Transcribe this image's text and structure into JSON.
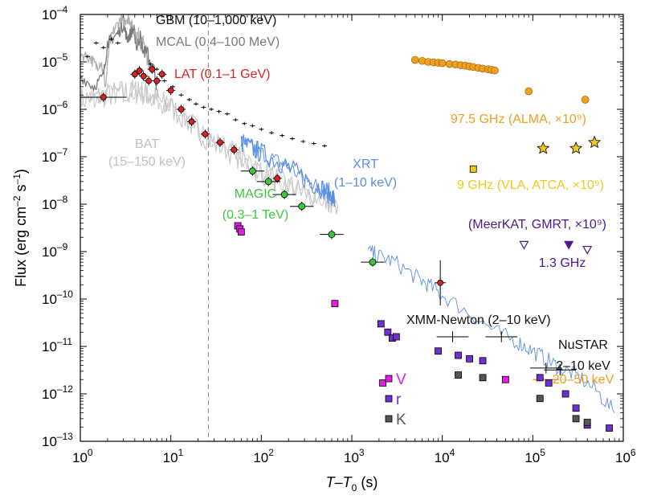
{
  "chart_data": {
    "type": "scatter",
    "xscale": "log",
    "yscale": "log",
    "xlim": [
      1,
      1000000
    ],
    "ylim": [
      1e-13,
      0.0001
    ],
    "xlabel": {
      "main": "T–T",
      "sub": "0",
      "unit": " (s)"
    },
    "ylabel": {
      "main": "Flux (erg cm",
      "sup1": "–2",
      "mid": " s",
      "sup2": "–1",
      "end": ")"
    },
    "x_ticks": [
      {
        "value": 1,
        "base": "10",
        "exp": "0"
      },
      {
        "value": 10,
        "base": "10",
        "exp": "1"
      },
      {
        "value": 100,
        "base": "10",
        "exp": "2"
      },
      {
        "value": 1000,
        "base": "10",
        "exp": "3"
      },
      {
        "value": 10000,
        "base": "10",
        "exp": "4"
      },
      {
        "value": 100000,
        "base": "10",
        "exp": "5"
      },
      {
        "value": 1000000,
        "base": "10",
        "exp": "6"
      }
    ],
    "y_ticks": [
      {
        "value": 1e-13,
        "base": "10",
        "exp": "–13"
      },
      {
        "value": 1e-12,
        "base": "10",
        "exp": "–12"
      },
      {
        "value": 1e-11,
        "base": "10",
        "exp": "–11"
      },
      {
        "value": 1e-10,
        "base": "10",
        "exp": "–10"
      },
      {
        "value": 1e-09,
        "base": "10",
        "exp": "–9"
      },
      {
        "value": 1e-08,
        "base": "10",
        "exp": "–8"
      },
      {
        "value": 1e-07,
        "base": "10",
        "exp": "–7"
      },
      {
        "value": 1e-06,
        "base": "10",
        "exp": "–6"
      },
      {
        "value": 1e-05,
        "base": "10",
        "exp": "–5"
      },
      {
        "value": 0.0001,
        "base": "10",
        "exp": "–4"
      }
    ],
    "vline_x": 26,
    "series": [
      {
        "name": "GBM",
        "label": "GBM (10–1,000 keV)",
        "kind": "curve",
        "color": "#b0b0b0",
        "x": [
          1.0,
          1.3,
          1.5,
          1.7,
          1.9,
          2.1,
          2.4,
          2.8,
          3.0,
          3.3,
          3.5,
          3.8,
          4.1,
          4.4,
          4.7,
          5.0,
          5.4,
          5.8
        ],
        "y": [
          1.5e-05,
          1.2e-05,
          8e-06,
          1e-05,
          3e-06,
          2.5e-05,
          5e-05,
          8e-05,
          7e-05,
          8.5e-05,
          8e-05,
          5e-05,
          3e-05,
          4e-05,
          2e-05,
          3e-05,
          1.3e-05,
          7e-06
        ]
      },
      {
        "name": "GBM-upper-limits",
        "kind": "marks",
        "color": "#000000",
        "x": [
          1.2,
          1.5,
          1.8,
          2.2,
          2.6,
          6.0,
          7.0,
          8.5,
          10.5,
          13,
          16,
          19,
          23,
          28,
          34,
          42,
          52,
          65,
          80,
          100,
          130,
          170,
          220,
          290,
          380,
          500
        ],
        "y": [
          1.3e-05,
          2.5e-05,
          2e-05,
          3e-05,
          2.5e-05,
          9e-06,
          7e-06,
          4e-06,
          3e-06,
          2e-06,
          1.6e-06,
          1.3e-06,
          1.1e-06,
          1e-06,
          9e-07,
          8e-07,
          6e-07,
          5e-07,
          4.5e-07,
          3.8e-07,
          3.2e-07,
          2.8e-07,
          2.4e-07,
          2.1e-07,
          1.9e-07,
          1.7e-07
        ]
      },
      {
        "name": "MCAL",
        "label": "MCAL (0.4–100 MeV)",
        "kind": "curve",
        "color": "#7a7a7a",
        "x": [
          1.0,
          1.4,
          1.8,
          2.0,
          2.2,
          2.6,
          3.0,
          3.3,
          3.6,
          3.9,
          4.2,
          4.6,
          5.0,
          5.5,
          6.0,
          6.5,
          7.0
        ],
        "y": [
          5e-06,
          3e-06,
          5e-06,
          2.5e-05,
          3e-05,
          4e-05,
          6e-05,
          3e-05,
          4e-05,
          5e-05,
          2e-05,
          3.5e-05,
          1.5e-05,
          2e-05,
          6e-06,
          8e-06,
          2.5e-06
        ]
      },
      {
        "name": "BAT",
        "label": "BAT (15–150 keV)",
        "kind": "curve",
        "color": "#c8c8c8",
        "x": [
          1,
          1.5,
          2,
          3,
          4,
          5,
          6,
          8,
          10,
          15,
          20,
          30,
          50,
          80,
          120,
          200,
          300,
          500,
          700
        ],
        "y": [
          1.6e-06,
          1.8e-06,
          2e-06,
          2.3e-06,
          2.4e-06,
          2.2e-06,
          1.9e-06,
          1.4e-06,
          1.1e-06,
          6e-07,
          3.5e-07,
          2e-07,
          1.2e-07,
          6e-08,
          4e-08,
          2.5e-08,
          1.7e-08,
          1.2e-08,
          9e-09
        ]
      },
      {
        "name": "XRT",
        "label": "XRT (1–10 keV)",
        "kind": "curve",
        "color": "#5b8fe6",
        "x": [
          60,
          80,
          100,
          150,
          200,
          300,
          400,
          500,
          600,
          650,
          1500,
          2000,
          3000,
          5000,
          7000,
          10000,
          20000,
          40000,
          70000,
          100000,
          150000,
          200000,
          300000,
          500000,
          800000
        ],
        "y": [
          2e-07,
          1.5e-07,
          1.2e-07,
          8e-08,
          6e-08,
          3.5e-08,
          2.5e-08,
          2e-08,
          1.5e-08,
          1.2e-08,
          1e-09,
          8e-10,
          6e-10,
          3e-10,
          2e-10,
          1.2e-10,
          5e-11,
          2e-11,
          1.2e-11,
          8e-12,
          5e-12,
          3.5e-12,
          2.5e-12,
          1.2e-12,
          4e-13
        ]
      },
      {
        "name": "LAT",
        "label": "LAT (0.1–1 GeV)",
        "kind": "points",
        "color": "#e02020",
        "x": [
          1.8,
          4.0,
          4.5,
          5.0,
          5.7,
          6.2,
          7.0,
          8.0,
          10.0,
          13.0,
          17.0,
          24.0,
          35.0,
          50.0,
          150.0,
          9500
        ],
        "y": [
          1.8e-06,
          5.5e-06,
          6.5e-06,
          5e-06,
          4e-06,
          7e-06,
          4e-06,
          5.5e-06,
          2.5e-06,
          1e-06,
          5.5e-07,
          3e-07,
          2e-07,
          1.4e-07,
          3.5e-08,
          2.2e-10
        ]
      },
      {
        "name": "MAGIC",
        "label": "MAGIC (0.3–1 TeV)",
        "kind": "points",
        "color": "#3cc83c",
        "x": [
          80,
          120,
          180,
          280,
          600,
          1700
        ],
        "y": [
          5e-08,
          3e-08,
          1.6e-08,
          9e-09,
          2.3e-09,
          6e-10
        ]
      },
      {
        "name": "XMM-Newton",
        "label": "XMM-Newton (2–10 keV)",
        "kind": "points",
        "color": "#111111",
        "x": [
          13000,
          45000
        ],
        "y": [
          1.6e-11,
          1.6e-11
        ]
      },
      {
        "name": "NuSTAR 2–10",
        "label": "2–10 keV",
        "kind": "points",
        "color": "#111111",
        "x": [
          140000,
          200000
        ],
        "y": [
          3.5e-12,
          3.2e-12
        ]
      },
      {
        "name": "NuSTAR 20–50",
        "label": "20–50 keV",
        "kind": "points",
        "color": "#f0a020",
        "x": [
          140000
        ],
        "y": [
          2e-12
        ]
      },
      {
        "name": "ALMA",
        "label": "97.5 GHz (ALMA, ×10⁹)",
        "kind": "points",
        "color": "#f0a020",
        "x": [
          5000,
          6000,
          7000,
          8000,
          9000,
          10000,
          12000,
          14000,
          16000,
          18000,
          20000,
          22000,
          25000,
          28000,
          32000,
          35000,
          38000,
          90000,
          380000
        ],
        "y": [
          1.1e-05,
          1.05e-05,
          1e-05,
          9.8e-06,
          9.6e-06,
          9.4e-06,
          9e-06,
          8.8e-06,
          8.5e-06,
          8.3e-06,
          8e-06,
          7.8e-06,
          7.5e-06,
          7.2e-06,
          7e-06,
          6.8e-06,
          6.6e-06,
          2.4e-06,
          1.6e-06
        ]
      },
      {
        "name": "VLA-ATCA",
        "label": "9 GHz (VLA, ATCA, ×10⁹)",
        "kind": "points",
        "color": "#f0c820",
        "x": [
          22000,
          130000,
          300000,
          480000
        ],
        "y": [
          5.5e-08,
          1.5e-07,
          1.5e-07,
          2e-07
        ]
      },
      {
        "name": "MeerKAT-GMRT",
        "label": "(MeerKAT, GMRT, ×10⁹)",
        "sublabel": "1.3 GHz",
        "kind": "points",
        "color": "#4b1a8a",
        "x": [
          80000,
          250000,
          400000
        ],
        "y": [
          1.4e-09,
          1.4e-09,
          1.1e-09
        ]
      },
      {
        "name": "V",
        "label": "V",
        "kind": "points",
        "color": "#e020e0",
        "x": [
          55,
          58,
          60,
          650,
          2200,
          50000
        ],
        "y": [
          3.5e-09,
          3e-09,
          2.6e-09,
          8e-11,
          1.7e-12,
          2e-12
        ]
      },
      {
        "name": "r",
        "label": "r",
        "kind": "points",
        "color": "#7030d0",
        "x": [
          2100,
          2500,
          2800,
          3100,
          9000,
          15000,
          20000,
          28000,
          120000,
          150000,
          230000,
          300000,
          400000,
          700000
        ],
        "y": [
          3e-11,
          2e-11,
          1.5e-11,
          1.6e-11,
          8e-12,
          6.5e-12,
          5.5e-12,
          5e-12,
          2.2e-12,
          1.7e-12,
          1e-12,
          5e-13,
          2.2e-13,
          1.9e-13
        ]
      },
      {
        "name": "K",
        "label": "K",
        "kind": "points",
        "color": "#555555",
        "x": [
          15000,
          28000,
          120000,
          300000,
          400000
        ],
        "y": [
          2.5e-12,
          2.2e-12,
          8e-13,
          3e-13,
          2.5e-13
        ]
      }
    ],
    "annotations": [
      {
        "text": "GBM (10–1,000 keV)",
        "color": "#111111"
      },
      {
        "text": "MCAL (0.4–100 MeV)",
        "color": "#7a7a7a"
      },
      {
        "text": "LAT (0.1–1 GeV)",
        "color": "#e02020"
      },
      {
        "text": "BAT",
        "color": "#c0c0c0"
      },
      {
        "text": "(15–150 keV)",
        "color": "#c0c0c0"
      },
      {
        "text": "XRT",
        "color": "#5b8fe6"
      },
      {
        "text": "(1–10 keV)",
        "color": "#5b8fe6"
      },
      {
        "text": "MAGIC",
        "color": "#3cc83c"
      },
      {
        "text": "(0.3–1 TeV)",
        "color": "#3cc83c"
      },
      {
        "text": "XMM-Newton (2–10 keV)",
        "color": "#111111"
      },
      {
        "text": "NuSTAR",
        "color": "#111111"
      },
      {
        "text": "2–10 keV",
        "color": "#111111"
      },
      {
        "text": "20–50 keV",
        "color": "#f0a020"
      },
      {
        "text": "97.5 GHz (ALMA, ×10⁹)",
        "color": "#f0a020"
      },
      {
        "text": "9 GHz (VLA, ATCA, ×10⁹)",
        "color": "#f0c820"
      },
      {
        "text": "(MeerKAT, GMRT, ×10⁹)",
        "color": "#4b1a8a"
      },
      {
        "text": "1.3 GHz",
        "color": "#4b1a8a"
      }
    ],
    "legend": [
      {
        "label": "V",
        "color": "#e020e0"
      },
      {
        "label": "r",
        "color": "#7030d0"
      },
      {
        "label": "K",
        "color": "#555555"
      }
    ]
  }
}
